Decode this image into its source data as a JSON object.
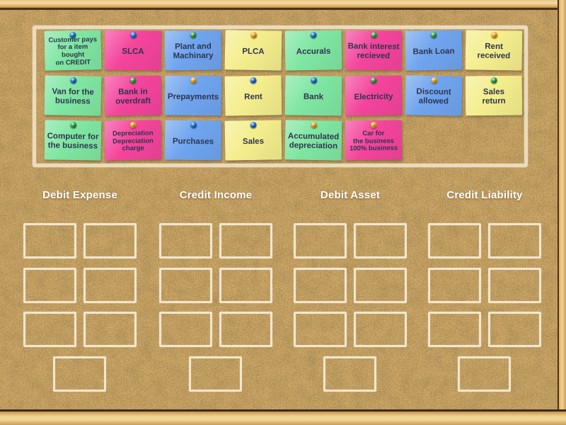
{
  "board": {
    "cork_color": "#b6834f",
    "frame_wood_color": "#eed28f",
    "panel_border_color": "#f0e4ca",
    "slot_border_color": "#f7eeda",
    "header_text_color": "#ffffff",
    "note_text_color": "#2e3550"
  },
  "note_colors": {
    "green": "#7fe6a2",
    "pink": "#f4449c",
    "blue": "#6fa4ee",
    "yellow": "#f4ee8d"
  },
  "pin_colors": {
    "blue": "#1e6fd2",
    "green": "#2f9f3f",
    "yellow": "#eba41e"
  },
  "categories": [
    {
      "label": "Debit Expense"
    },
    {
      "label": "Credit Income"
    },
    {
      "label": "Debit Asset"
    },
    {
      "label": "Credit Liability"
    }
  ],
  "slots_per_group": {
    "grid_rows": 3,
    "grid_cols": 2,
    "extra_bottom_slot": 1
  },
  "notes": [
    {
      "text": "Customer pays\nfor a item bought\non CREDIT",
      "color": "green",
      "pin": "blue",
      "row": 1,
      "col": 1,
      "small": true
    },
    {
      "text": "SLCA",
      "color": "pink",
      "pin": "blue",
      "row": 1,
      "col": 2,
      "small": false
    },
    {
      "text": "Plant and\nMachinary",
      "color": "blue",
      "pin": "green",
      "row": 1,
      "col": 3,
      "small": false
    },
    {
      "text": "PLCA",
      "color": "yellow",
      "pin": "yellow",
      "row": 1,
      "col": 4,
      "small": false
    },
    {
      "text": "Accurals",
      "color": "green",
      "pin": "blue",
      "row": 1,
      "col": 5,
      "small": false
    },
    {
      "text": "Bank interest\nrecieved",
      "color": "pink",
      "pin": "green",
      "row": 1,
      "col": 6,
      "small": false
    },
    {
      "text": "Bank Loan",
      "color": "blue",
      "pin": "green",
      "row": 1,
      "col": 7,
      "small": false
    },
    {
      "text": "Rent\nreceived",
      "color": "yellow",
      "pin": "yellow",
      "row": 1,
      "col": 8,
      "small": false
    },
    {
      "text": "Van for the\nbusiness",
      "color": "green",
      "pin": "blue",
      "row": 2,
      "col": 1,
      "small": false
    },
    {
      "text": "Bank in\noverdraft",
      "color": "pink",
      "pin": "green",
      "row": 2,
      "col": 2,
      "small": false
    },
    {
      "text": "Prepayments",
      "color": "blue",
      "pin": "yellow",
      "row": 2,
      "col": 3,
      "small": false
    },
    {
      "text": "Rent",
      "color": "yellow",
      "pin": "blue",
      "row": 2,
      "col": 4,
      "small": false
    },
    {
      "text": "Bank",
      "color": "green",
      "pin": "blue",
      "row": 2,
      "col": 5,
      "small": false
    },
    {
      "text": "Electricity",
      "color": "pink",
      "pin": "green",
      "row": 2,
      "col": 6,
      "small": false
    },
    {
      "text": "Discount\nallowed",
      "color": "blue",
      "pin": "yellow",
      "row": 2,
      "col": 7,
      "small": false
    },
    {
      "text": "Sales\nreturn",
      "color": "yellow",
      "pin": "green",
      "row": 2,
      "col": 8,
      "small": false
    },
    {
      "text": "Computer for\nthe business",
      "color": "green",
      "pin": "green",
      "row": 3,
      "col": 1,
      "small": false
    },
    {
      "text": "Depreciation\nDepreciation\ncharge",
      "color": "pink",
      "pin": "yellow",
      "row": 3,
      "col": 2,
      "small": true
    },
    {
      "text": "Purchases",
      "color": "blue",
      "pin": "blue",
      "row": 3,
      "col": 3,
      "small": false
    },
    {
      "text": "Sales",
      "color": "yellow",
      "pin": "blue",
      "row": 3,
      "col": 4,
      "small": false
    },
    {
      "text": "Accumulated\ndepreciation",
      "color": "green",
      "pin": "yellow",
      "row": 3,
      "col": 5,
      "small": false
    },
    {
      "text": "Car for\nthe business\n100% business",
      "color": "pink",
      "pin": "yellow",
      "row": 3,
      "col": 6,
      "small": true
    }
  ]
}
